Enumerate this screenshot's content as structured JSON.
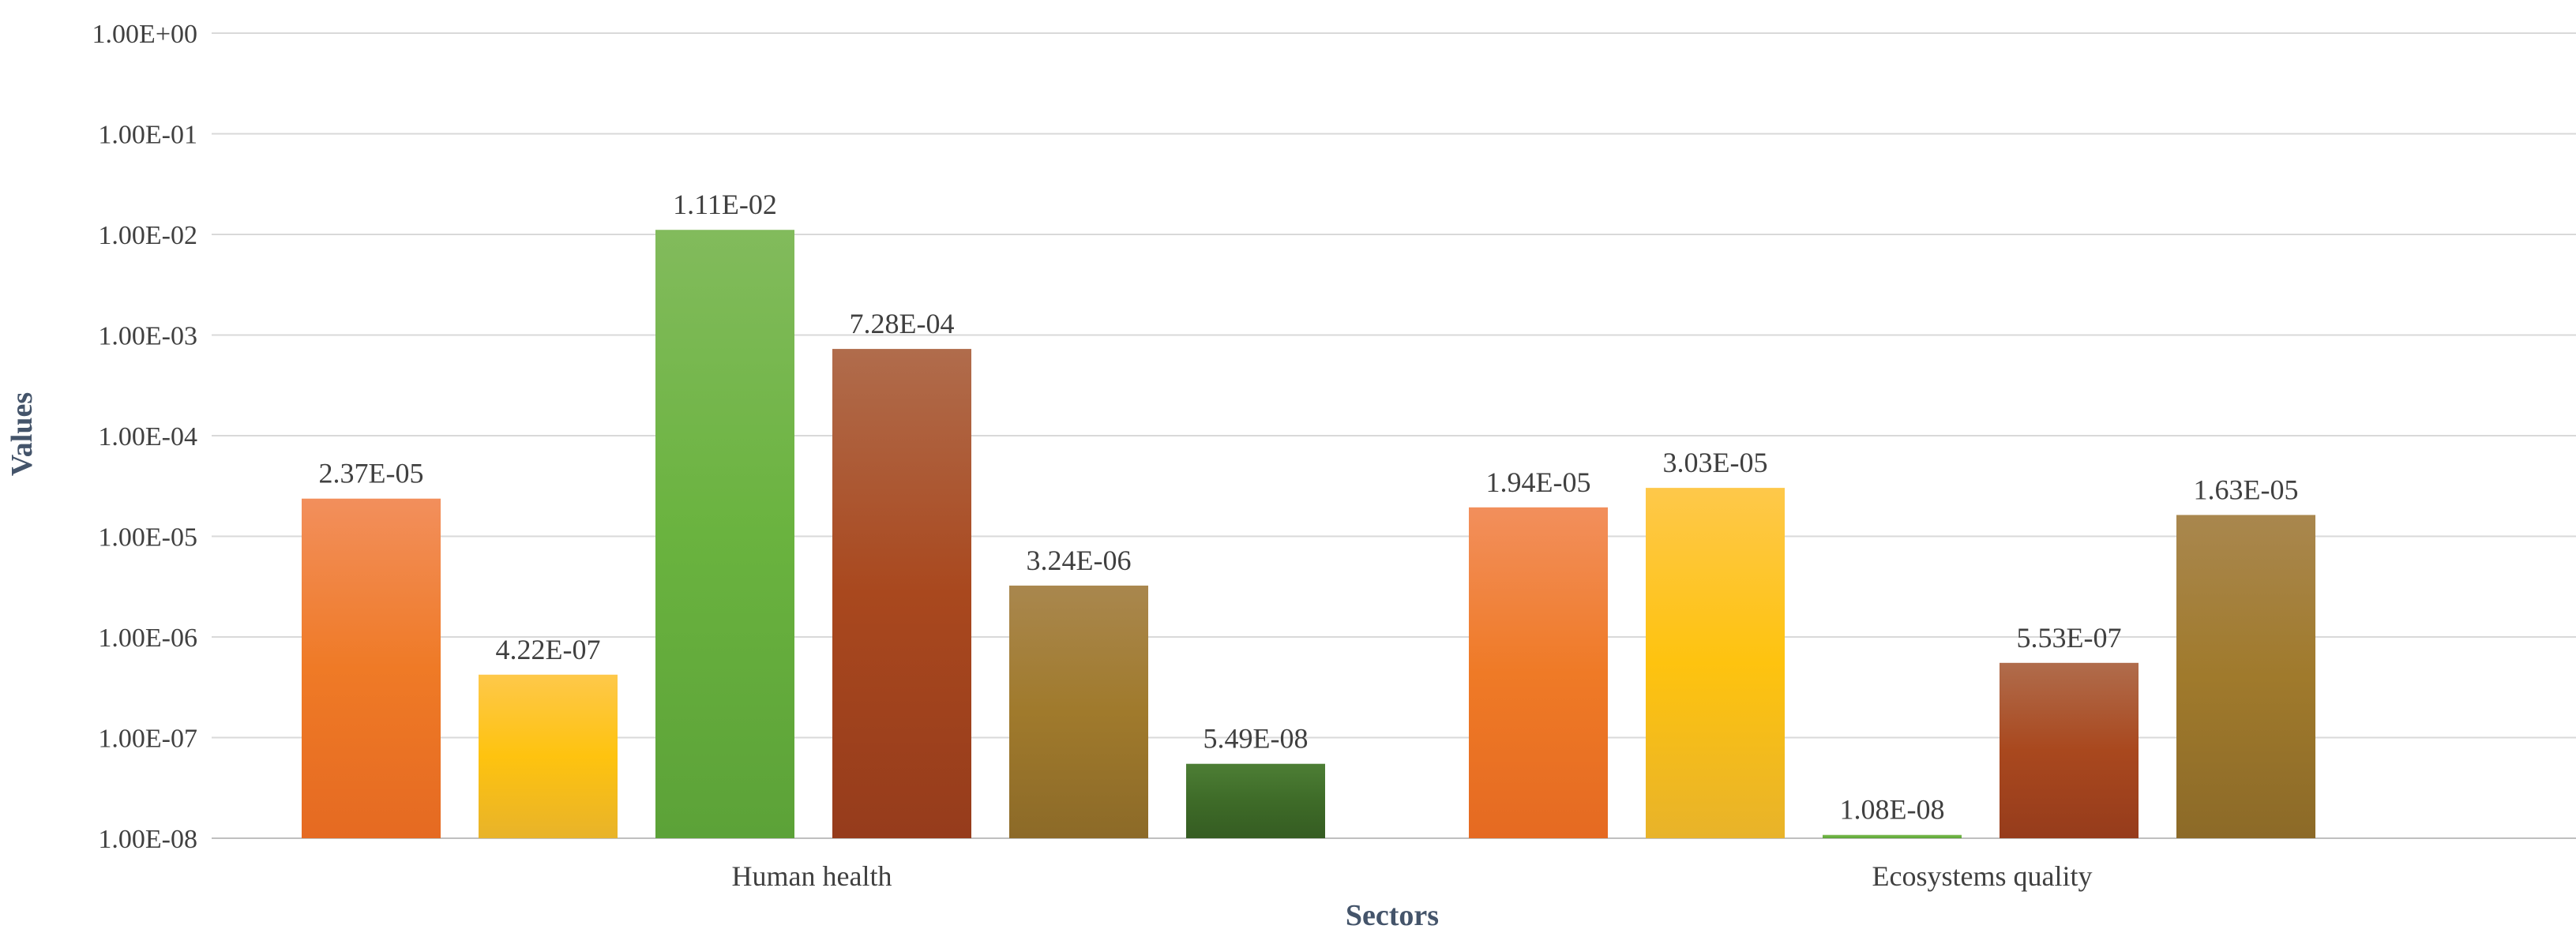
{
  "chart_data": {
    "type": "bar",
    "title": "",
    "xlabel": "Sectors",
    "ylabel": "Values",
    "y_scale": "log",
    "ylim": [
      1e-08,
      1
    ],
    "y_ticks": [
      {
        "value": 1,
        "label": "1.00E+00"
      },
      {
        "value": 0.1,
        "label": "1.00E-01"
      },
      {
        "value": 0.01,
        "label": "1.00E-02"
      },
      {
        "value": 0.001,
        "label": "1.00E-03"
      },
      {
        "value": 0.0001,
        "label": "1.00E-04"
      },
      {
        "value": 1e-05,
        "label": "1.00E-05"
      },
      {
        "value": 1e-06,
        "label": "1.00E-06"
      },
      {
        "value": 1e-07,
        "label": "1.00E-07"
      },
      {
        "value": 1e-08,
        "label": "1.00E-08"
      }
    ],
    "grid": true,
    "legend": "none",
    "categories": [
      "Human health",
      "Ecosystems quality"
    ],
    "series_colors": [
      "#ee7a30",
      "#fdc127",
      "#6db33f",
      "#a84a24",
      "#9c7a2c",
      "#3f6f2a"
    ],
    "series": [
      {
        "values": [
          2.37e-05,
          1.94e-05
        ],
        "labels": [
          "2.37E-05",
          "1.94E-05"
        ]
      },
      {
        "values": [
          4.22e-07,
          3.03e-05
        ],
        "labels": [
          "4.22E-07",
          "3.03E-05"
        ]
      },
      {
        "values": [
          0.0111,
          1.08e-08
        ],
        "labels": [
          "1.11E-02",
          "1.08E-08"
        ]
      },
      {
        "values": [
          0.000728,
          5.53e-07
        ],
        "labels": [
          "7.28E-04",
          "5.53E-07"
        ]
      },
      {
        "values": [
          3.24e-06,
          1.63e-05
        ],
        "labels": [
          "3.24E-06",
          "1.63E-05"
        ]
      },
      {
        "values": [
          5.49e-08,
          null
        ],
        "labels": [
          "5.49E-08",
          null
        ]
      }
    ]
  }
}
